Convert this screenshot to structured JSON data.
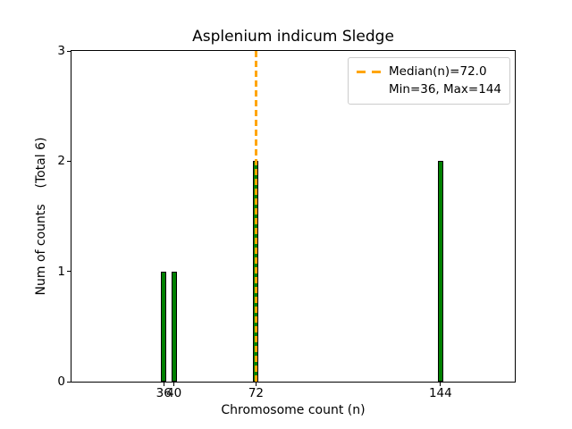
{
  "chart_data": {
    "type": "bar",
    "title": "Asplenium indicum Sledge",
    "xlabel": "Chromosome count (n)",
    "ylabel": "Num of counts    (Total 6)",
    "x": [
      36,
      40,
      72,
      144
    ],
    "values": [
      1,
      1,
      2,
      2
    ],
    "total_counts": 6,
    "xticks": [
      36,
      40,
      72,
      144
    ],
    "yticks": [
      0,
      1,
      2,
      3
    ],
    "xlim": [
      0,
      173
    ],
    "ylim": [
      0,
      3
    ],
    "grid": false,
    "bar_color": "#008000",
    "bar_edge_color": "#000000",
    "median": 72.0,
    "min": 36,
    "max": 144,
    "median_line_color": "#FFA500",
    "legend_position": "upper right",
    "legend": [
      "Median(n)=72.0",
      "Min=36, Max=144"
    ]
  }
}
